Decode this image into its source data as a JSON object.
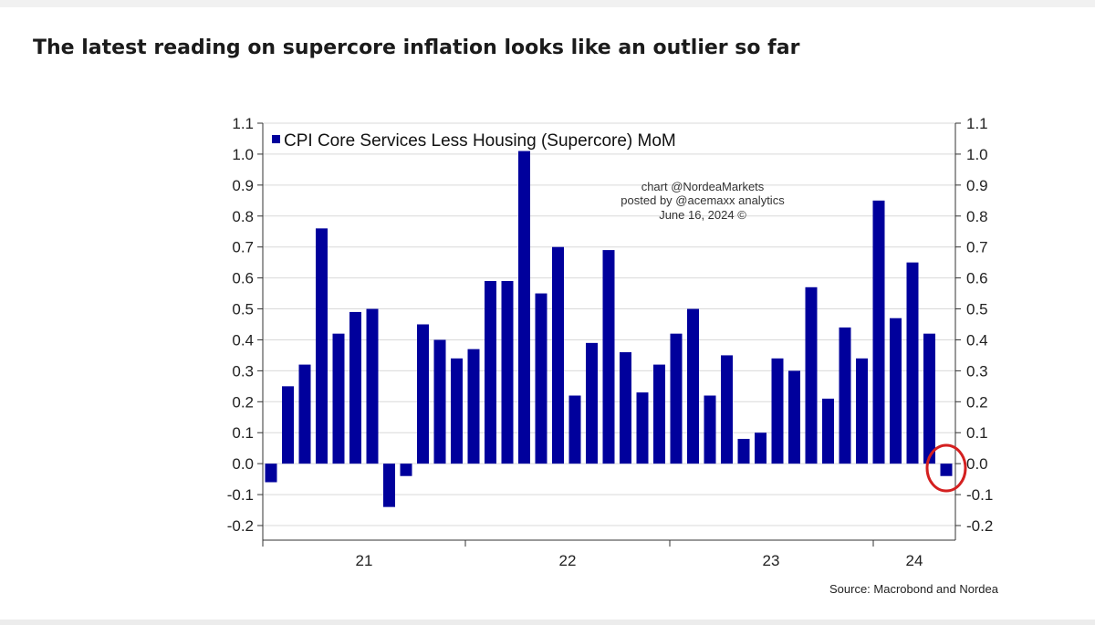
{
  "page": {
    "headline": "The latest reading on supercore inflation looks like an outlier so far"
  },
  "chart_data": {
    "type": "bar",
    "legend": {
      "label": "CPI Core Services Less Housing (Supercore) MoM",
      "placement": "top-left"
    },
    "series": [
      {
        "name": "CPI Core Services Less Housing (Supercore) MoM",
        "color": "#00009c",
        "values": [
          -0.06,
          0.25,
          0.32,
          0.76,
          0.42,
          0.49,
          0.5,
          -0.14,
          -0.04,
          0.45,
          0.4,
          0.34,
          0.37,
          0.59,
          0.59,
          1.01,
          0.55,
          0.7,
          0.22,
          0.39,
          0.69,
          0.36,
          0.23,
          0.32,
          0.42,
          0.5,
          0.22,
          0.35,
          0.08,
          0.1,
          0.34,
          0.3,
          0.57,
          0.21,
          0.44,
          0.34,
          0.85,
          0.47,
          0.65,
          0.42,
          -0.04
        ]
      }
    ],
    "x_tick_labels": [
      "21",
      "22",
      "23",
      "24"
    ],
    "y_ticks": [
      "-0.2",
      "-0.1",
      "0.0",
      "0.1",
      "0.2",
      "0.3",
      "0.4",
      "0.5",
      "0.6",
      "0.7",
      "0.8",
      "0.9",
      "1.0",
      "1.1"
    ],
    "ylim": [
      -0.2,
      1.1
    ],
    "dual_y_axis": true,
    "grid": "horizontal",
    "highlight": {
      "type": "circle",
      "color": "#d42020",
      "bar": "last"
    },
    "watermark": [
      "chart @NordeaMarkets",
      "posted by @acemaxx analytics",
      "June 16, 2024 ©"
    ],
    "source": "Source: Macrobond and Nordea"
  }
}
